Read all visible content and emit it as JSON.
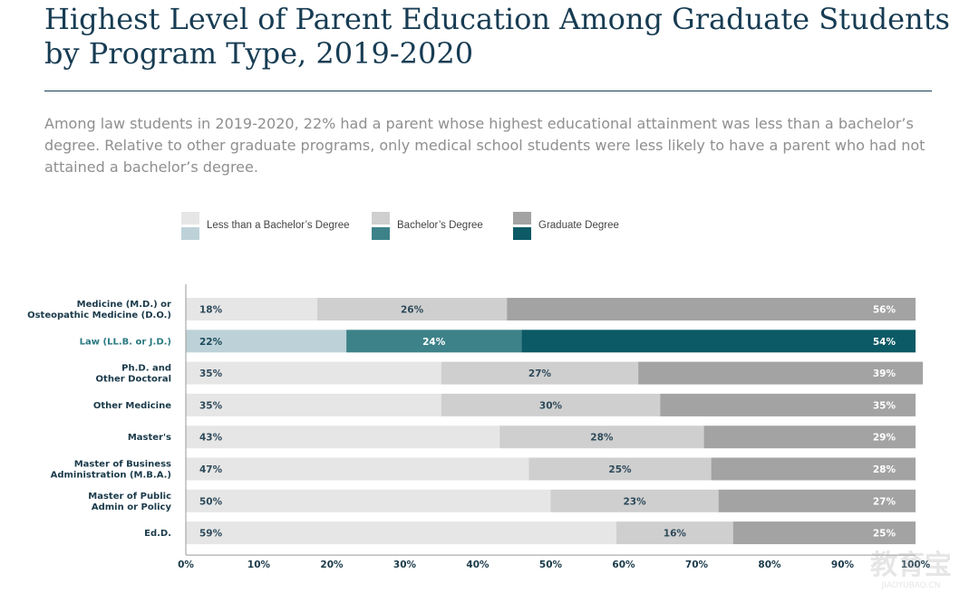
{
  "chart_data": {
    "type": "bar",
    "orientation": "horizontal",
    "stacked": true,
    "title": "Highest Level of Parent Education Among Graduate Students by Program Type, 2019-2020",
    "subtitle": "Among law students in 2019-2020, 22% had a parent whose highest educational attainment was less than a bachelor’s degree. Relative to other graduate programs, only medical school students were less likely to have a parent who had not attained a bachelor’s degree.",
    "categories": [
      "Medicine (M.D.) or\nOsteopathic Medicine (D.O.)",
      "Law (LL.B. or J.D.)",
      "Ph.D. and\nOther Doctoral",
      "Other Medicine",
      "Master's",
      "Master of Business\nAdministration (M.B.A.)",
      "Master of Public\nAdmin or Policy",
      "Ed.D."
    ],
    "highlight_category": "Law (LL.B. or J.D.)",
    "series": [
      {
        "name": "Less than a Bachelor’s Degree",
        "values": [
          18,
          22,
          35,
          35,
          43,
          47,
          50,
          59
        ]
      },
      {
        "name": "Bachelor’s Degree",
        "values": [
          26,
          24,
          27,
          30,
          28,
          25,
          23,
          16
        ]
      },
      {
        "name": "Graduate Degree",
        "values": [
          56,
          54,
          39,
          35,
          29,
          28,
          27,
          25
        ]
      }
    ],
    "data_labels": [
      [
        "18%",
        "26%",
        "56%"
      ],
      [
        "22%",
        "24%",
        "54%"
      ],
      [
        "35%",
        "27%",
        "39%"
      ],
      [
        "35%",
        "30%",
        "35%"
      ],
      [
        "43%",
        "28%",
        "29%"
      ],
      [
        "47%",
        "25%",
        "28%"
      ],
      [
        "50%",
        "23%",
        "27%"
      ],
      [
        "59%",
        "16%",
        "25%"
      ]
    ],
    "xlim": [
      0,
      100
    ],
    "xticks": [
      "0%",
      "10%",
      "20%",
      "30%",
      "40%",
      "50%",
      "60%",
      "70%",
      "80%",
      "90%",
      "100%"
    ],
    "grid": false,
    "legend_position": "top-left",
    "colors": {
      "normal": [
        "#e6e6e6",
        "#cfcfcf",
        "#a3a3a3"
      ],
      "highlight": [
        "#bdd2d8",
        "#3e8289",
        "#0b5a66"
      ],
      "normal_label": [
        "#2e4a5a",
        "#2e4a5a",
        "#ffffff"
      ],
      "highlight_label": [
        "#1d4a5c",
        "#ffffff",
        "#ffffff"
      ],
      "category_label": "#1a3a4a",
      "highlight_category_label": "#2b7a82",
      "axis": "#9a9a9a"
    }
  },
  "watermark": {
    "text": "教育宝",
    "url": "JIAOYUBAO.CN"
  }
}
